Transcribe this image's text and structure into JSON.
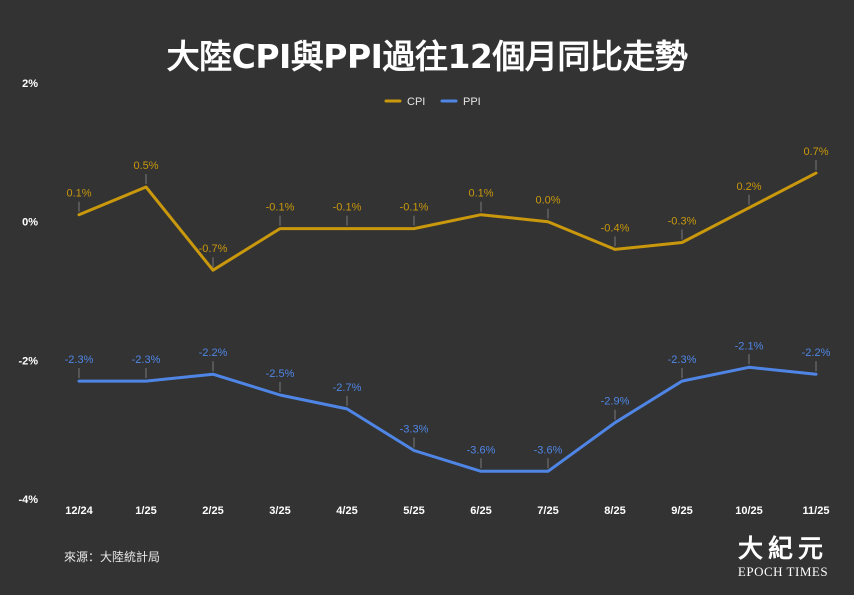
{
  "chart_data": {
    "type": "line",
    "title": "大陸CPI與PPI過往12個月同比走勢",
    "categories": [
      "12/24",
      "1/25",
      "2/25",
      "3/25",
      "4/25",
      "5/25",
      "6/25",
      "7/25",
      "8/25",
      "9/25",
      "10/25",
      "11/25"
    ],
    "y_ticks": [
      2,
      0,
      -2,
      -4
    ],
    "y_tick_labels": [
      "2%",
      "0%",
      "-2%",
      "-4%"
    ],
    "ylim": [
      -4,
      2
    ],
    "legend_position": "top-center",
    "series": [
      {
        "name": "CPI",
        "color": "#c9980c",
        "values": [
          0.1,
          0.5,
          -0.7,
          -0.1,
          -0.1,
          -0.1,
          0.1,
          0.0,
          -0.4,
          -0.3,
          0.2,
          0.7
        ],
        "labels": [
          "0.1%",
          "0.5%",
          "-0.7%",
          "-0.1%",
          "-0.1%",
          "-0.1%",
          "0.1%",
          "0.0%",
          "-0.4%",
          "-0.3%",
          "0.2%",
          "0.7%"
        ]
      },
      {
        "name": "PPI",
        "color": "#4f86e6",
        "values": [
          -2.3,
          -2.3,
          -2.2,
          -2.5,
          -2.7,
          -3.3,
          -3.6,
          -3.6,
          -2.9,
          -2.3,
          -2.1,
          -2.2
        ],
        "labels": [
          "-2.3%",
          "-2.3%",
          "-2.2%",
          "-2.5%",
          "-2.7%",
          "-3.3%",
          "-3.6%",
          "-3.6%",
          "-2.9%",
          "-2.3%",
          "-2.1%",
          "-2.2%"
        ]
      }
    ]
  },
  "footer": {
    "source": "來源：大陸統計局",
    "logo_cn": "大紀元",
    "logo_en": "EPOCH TIMES"
  }
}
